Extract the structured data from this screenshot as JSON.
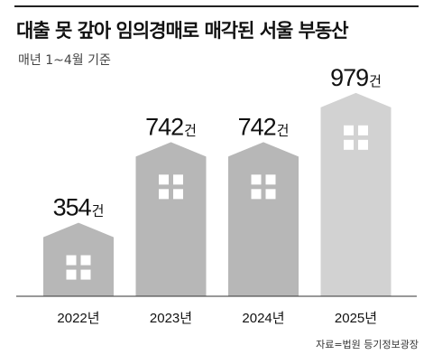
{
  "title": "대출 못 갚아 임의경매로 매각된 서울 부동산",
  "subtitle": "매년 1~4월 기준",
  "source": "자료=법원 등기정보광장",
  "colors": {
    "building": "#b7b7b7",
    "highlight": "#d2d2d2",
    "window": "#ffffff",
    "text": "#111111"
  },
  "chart_data": {
    "type": "bar",
    "categories": [
      "2022년",
      "2023년",
      "2024년",
      "2025년"
    ],
    "values": [
      354,
      742,
      742,
      979
    ],
    "unit": "건",
    "value_labels": [
      "354",
      "742",
      "742",
      "979"
    ],
    "ylim": [
      0,
      1000
    ],
    "grid": false,
    "legend": "none"
  }
}
